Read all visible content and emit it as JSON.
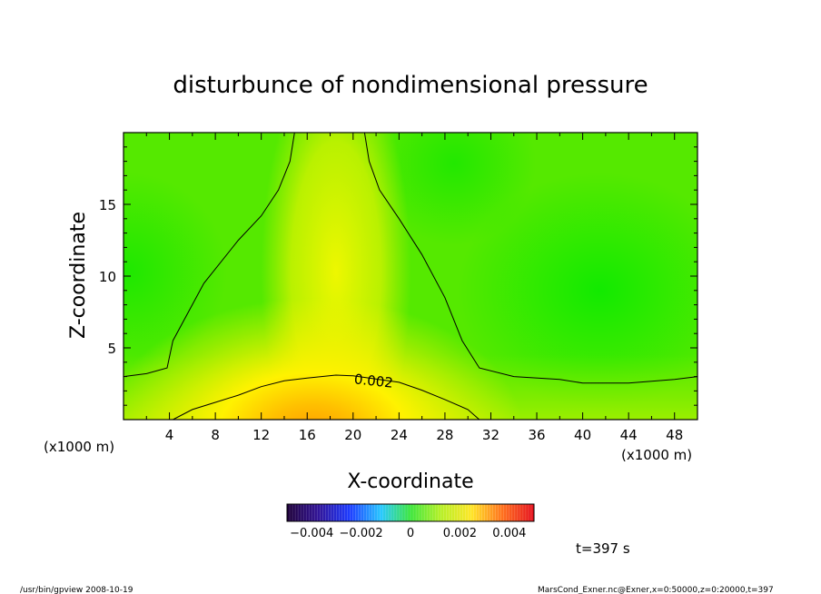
{
  "chart_data": {
    "type": "heatmap",
    "title": "disturbunce of nondimensional pressure",
    "xlabel": "X-coordinate",
    "ylabel": "Z-coordinate",
    "x_unit_left": "(x1000 m)",
    "x_unit_right": "(x1000 m)",
    "xlim": [
      0,
      50
    ],
    "ylim": [
      0,
      20
    ],
    "x_ticks": [
      "4",
      "8",
      "12",
      "16",
      "20",
      "24",
      "28",
      "32",
      "36",
      "40",
      "44",
      "48"
    ],
    "y_ticks": [
      "5",
      "10",
      "15"
    ],
    "x_tick_values": [
      4,
      8,
      12,
      16,
      20,
      24,
      28,
      32,
      36,
      40,
      44,
      48
    ],
    "y_tick_values": [
      5,
      10,
      15
    ],
    "contour_label": "0.002",
    "contour_level": 0.002,
    "contours": [
      {
        "name": "outer",
        "points": [
          [
            0,
            3.0
          ],
          [
            2,
            3.2
          ],
          [
            3.8,
            3.6
          ],
          [
            4.3,
            5.5
          ],
          [
            7,
            9.5
          ],
          [
            10,
            12.5
          ],
          [
            12,
            14.2
          ],
          [
            13.5,
            16
          ],
          [
            14.5,
            18
          ],
          [
            14.9,
            20
          ],
          [
            null,
            null
          ],
          [
            21,
            20
          ],
          [
            21.4,
            18
          ],
          [
            22.3,
            16
          ],
          [
            24,
            14
          ],
          [
            26,
            11.5
          ],
          [
            28,
            8.5
          ],
          [
            29.5,
            5.5
          ],
          [
            31,
            3.6
          ],
          [
            34,
            3.0
          ],
          [
            38,
            2.8
          ],
          [
            40,
            2.55
          ],
          [
            44,
            2.55
          ],
          [
            48,
            2.8
          ],
          [
            50,
            3.0
          ]
        ]
      },
      {
        "name": "inner",
        "points": [
          [
            4.3,
            0
          ],
          [
            6,
            0.7
          ],
          [
            8,
            1.2
          ],
          [
            10,
            1.7
          ],
          [
            12,
            2.3
          ],
          [
            14,
            2.7
          ],
          [
            16,
            2.9
          ],
          [
            18.5,
            3.1
          ],
          [
            20,
            3.05
          ],
          [
            24,
            2.6
          ],
          [
            26,
            2.05
          ],
          [
            28,
            1.4
          ],
          [
            30,
            0.7
          ],
          [
            31,
            0
          ]
        ]
      }
    ],
    "colorbar": {
      "ticks": [
        "−0.004",
        "−0.002",
        "0",
        "0.002",
        "0.004"
      ],
      "tick_values": [
        -0.004,
        -0.002,
        0,
        0.002,
        0.004
      ],
      "range": [
        -0.005,
        0.005
      ]
    }
  },
  "footer": {
    "time": "t=397 s",
    "left_note": "/usr/bin/gpview   2008-10-19",
    "right_note": "MarsCond_Exner.nc@Exner,x=0:50000,z=0:20000,t=397"
  }
}
